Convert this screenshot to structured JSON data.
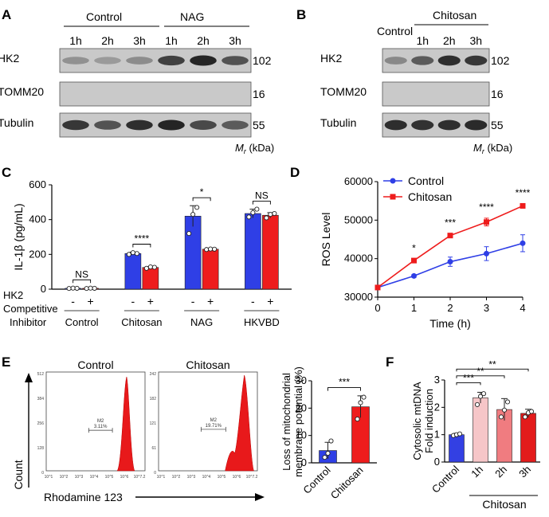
{
  "panels": {
    "A": {
      "letter": "A",
      "groups": [
        "Control",
        "NAG"
      ],
      "lanes": [
        "1h",
        "2h",
        "3h",
        "1h",
        "2h",
        "3h"
      ],
      "rows": [
        {
          "label": "HK2",
          "mw": "102",
          "intensities": [
            0.25,
            0.2,
            0.28,
            0.7,
            0.85,
            0.6
          ]
        },
        {
          "label": "TOMM20",
          "mw": "16",
          "intensities": [
            0,
            0,
            0,
            0,
            0,
            0
          ]
        },
        {
          "label": "Tubulin",
          "mw": "55",
          "intensities": [
            0.75,
            0.6,
            0.8,
            0.85,
            0.65,
            0.55
          ]
        }
      ],
      "mr_label": "M",
      "mr_sub": "r",
      "mr_unit": " (kDa)"
    },
    "B": {
      "letter": "B",
      "control_label": "Control",
      "group": "Chitosan",
      "lanes": [
        "1h",
        "2h",
        "3h"
      ],
      "rows": [
        {
          "label": "HK2",
          "mw": "102",
          "intensities": [
            0.3,
            0.55,
            0.8,
            0.75
          ]
        },
        {
          "label": "TOMM20",
          "mw": "16",
          "intensities": [
            0,
            0,
            0,
            0
          ]
        },
        {
          "label": "Tubulin",
          "mw": "55",
          "intensities": [
            0.8,
            0.78,
            0.8,
            0.82
          ]
        }
      ],
      "mr_label": "M",
      "mr_sub": "r",
      "mr_unit": " (kDa)"
    },
    "C": {
      "letter": "C",
      "row_label_1": "HK2",
      "row_label_2": "Competitive",
      "row_label_3": "Inhibitor",
      "minus": "-",
      "plus": "+"
    },
    "D": {
      "letter": "D"
    },
    "E": {
      "letter": "E",
      "flow_titles": [
        "Control",
        "Chitosan"
      ],
      "gate_label": "M2",
      "gate_values": [
        "3.11%",
        "19.71%"
      ],
      "y_axis_label": "Count",
      "x_axis_label": "Rhodamine 123",
      "y_ticks_control": [
        "512",
        "384",
        "256",
        "128",
        "0"
      ],
      "y_ticks_chitosan": [
        "242",
        "182",
        "121",
        "61",
        "0"
      ]
    },
    "F": {
      "letter": "F",
      "group_label": "Chitosan"
    }
  },
  "chart_data": [
    {
      "panel": "C",
      "type": "bar",
      "ylabel": "IL-1β (pg/mL)",
      "ylim": [
        0,
        600
      ],
      "yticks": [
        0,
        200,
        400,
        600
      ],
      "categories": [
        "Control",
        "Chitosan",
        "NAG",
        "HKVBD"
      ],
      "series": [
        {
          "name": "-",
          "color": "#2f3fe6",
          "values": [
            5,
            205,
            420,
            435
          ],
          "errors": [
            3,
            8,
            60,
            25
          ],
          "points": [
            [
              4,
              6,
              5
            ],
            [
              200,
              210,
              205
            ],
            [
              320,
              430,
              470
            ],
            [
              415,
              440,
              460
            ]
          ]
        },
        {
          "name": "+",
          "color": "#ee1c1c",
          "values": [
            5,
            125,
            230,
            425
          ],
          "errors": [
            3,
            5,
            3,
            15
          ],
          "points": [
            [
              4,
              6,
              5
            ],
            [
              120,
              128,
              126
            ],
            [
              228,
              231,
              230
            ],
            [
              410,
              430,
              435
            ]
          ]
        }
      ],
      "significance": [
        "NS",
        "****",
        "*",
        "NS"
      ]
    },
    {
      "panel": "D",
      "type": "line",
      "xlabel": "Time (h)",
      "ylabel": "ROS Level",
      "x": [
        0,
        1,
        2,
        3,
        4
      ],
      "xlim": [
        0,
        4
      ],
      "ylim": [
        30000,
        60000
      ],
      "yticks": [
        30000,
        40000,
        50000,
        60000
      ],
      "series": [
        {
          "name": "Control",
          "color": "#2f3fe6",
          "values": [
            32500,
            35500,
            39200,
            41300,
            44000
          ],
          "errors": [
            0,
            400,
            1200,
            1800,
            2200
          ]
        },
        {
          "name": "Chitosan",
          "color": "#ee1c1c",
          "values": [
            32500,
            39500,
            46000,
            49500,
            53700
          ],
          "errors": [
            0,
            300,
            500,
            1000,
            500
          ]
        }
      ],
      "significance": [
        "",
        "*",
        "***",
        "****",
        "****"
      ]
    },
    {
      "panel": "E",
      "type": "bar",
      "ylabel": "Loss of mitochondrial membrane potential (%)",
      "ylim": [
        0,
        30
      ],
      "yticks": [
        0,
        10,
        20,
        30
      ],
      "categories": [
        "Control",
        "Chitosan"
      ],
      "colors": [
        "#2f3fe6",
        "#ee1c1c"
      ],
      "values": [
        4.5,
        20.5
      ],
      "errors": [
        3,
        4
      ],
      "points": [
        [
          2,
          3.5,
          8
        ],
        [
          16,
          22,
          24
        ]
      ],
      "significance": [
        "***"
      ]
    },
    {
      "panel": "F",
      "type": "bar",
      "ylabel": "Cytosolic mtDNA Fold induction",
      "ylim": [
        0,
        3
      ],
      "yticks": [
        0,
        1,
        2,
        3
      ],
      "categories": [
        "Control",
        "1h",
        "2h",
        "3h"
      ],
      "colors": [
        "#3340e3",
        "#f6c6c8",
        "#f07c80",
        "#e31b1b"
      ],
      "values": [
        1.0,
        2.35,
        1.92,
        1.78
      ],
      "errors": [
        0.05,
        0.2,
        0.4,
        0.15
      ],
      "points": [
        [
          0.97,
          1.0,
          1.03
        ],
        [
          2.1,
          2.4,
          2.5
        ],
        [
          1.65,
          1.9,
          2.2
        ],
        [
          1.65,
          1.8,
          1.85
        ]
      ],
      "significance": [
        "***",
        "**",
        "**"
      ]
    },
    {
      "panel": "E-flow",
      "type": "area",
      "xlabel": "Rhodamine 123",
      "ylabel": "Count",
      "x_ticks": [
        "10^1",
        "10^2",
        "10^3",
        "10^4",
        "10^5",
        "10^6",
        "10^7.2"
      ]
    }
  ]
}
